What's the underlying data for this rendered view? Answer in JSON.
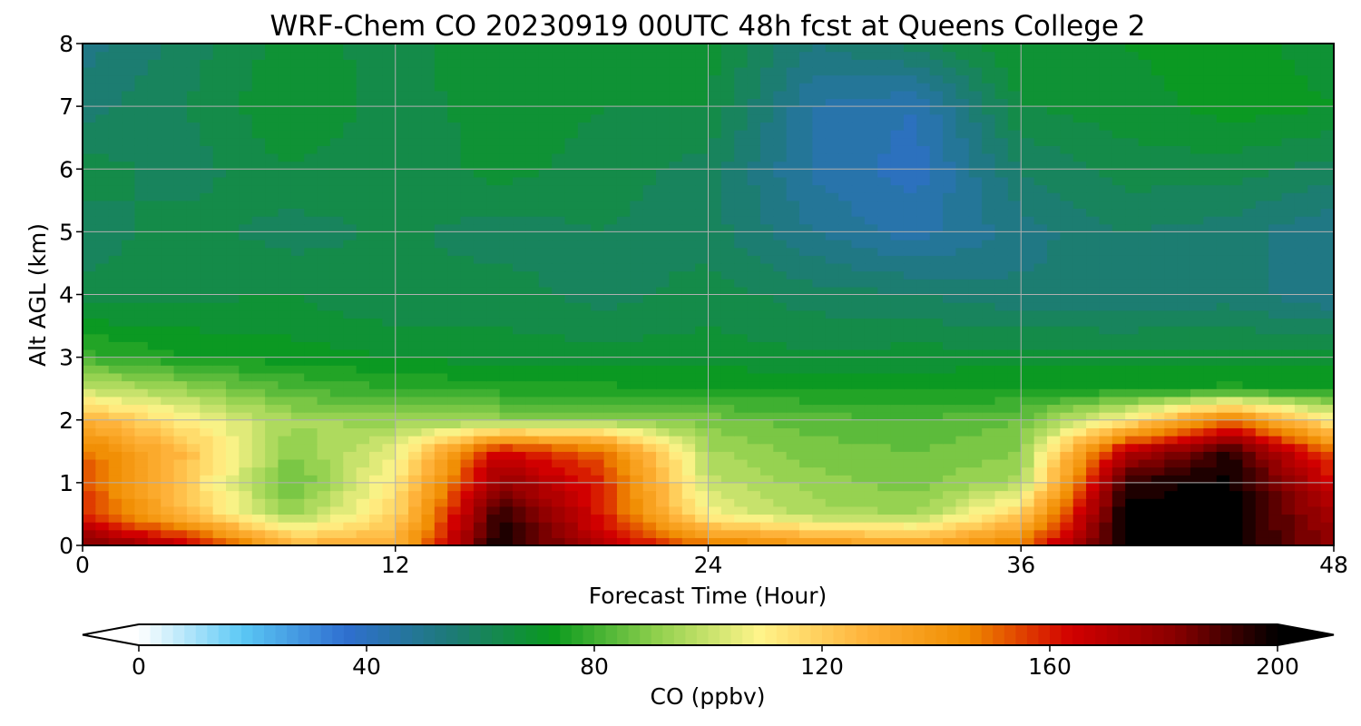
{
  "chart_data": {
    "type": "heatmap",
    "title": "WRF-Chem CO  20230919 00UTC 48h fcst at Queens College 2",
    "xlabel": "Forecast Time (Hour)",
    "ylabel": "Alt AGL (km)",
    "xlim": [
      0,
      48
    ],
    "ylim": [
      0,
      8
    ],
    "xticks": [
      0,
      12,
      24,
      36,
      48
    ],
    "yticks": [
      0,
      1,
      2,
      3,
      4,
      5,
      6,
      7,
      8
    ],
    "grid": true,
    "colorbar": {
      "label": "CO  (ppbv)",
      "min": 0,
      "max": 200,
      "ticks": [
        0,
        40,
        80,
        120,
        160,
        200
      ],
      "extend": "both",
      "colors": [
        "#ffffff",
        "#5bc8f5",
        "#2f6fd0",
        "#1e7a78",
        "#0a9a1e",
        "#8fd04d",
        "#fff48a",
        "#ffb43c",
        "#f08c00",
        "#d20000",
        "#8a0000",
        "#000000"
      ]
    },
    "x": [
      0,
      4,
      8,
      12,
      16,
      20,
      24,
      28,
      32,
      36,
      40,
      44,
      48
    ],
    "y": [
      0,
      0.5,
      1,
      1.5,
      2,
      2.5,
      3,
      4,
      5,
      6,
      7,
      8
    ],
    "z": [
      [
        185,
        170,
        130,
        130,
        200,
        170,
        150,
        142,
        135,
        150,
        200,
        200,
        180
      ],
      [
        160,
        125,
        92,
        118,
        195,
        160,
        108,
        96,
        94,
        120,
        200,
        200,
        175
      ],
      [
        155,
        120,
        84,
        112,
        180,
        158,
        100,
        92,
        88,
        96,
        195,
        200,
        165
      ],
      [
        150,
        125,
        90,
        105,
        165,
        150,
        95,
        88,
        86,
        90,
        170,
        195,
        150
      ],
      [
        130,
        110,
        95,
        92,
        92,
        92,
        88,
        84,
        82,
        86,
        112,
        150,
        110
      ],
      [
        100,
        92,
        82,
        78,
        76,
        75,
        74,
        74,
        73,
        74,
        74,
        75,
        74
      ],
      [
        80,
        74,
        72,
        70,
        68,
        68,
        68,
        67,
        68,
        68,
        68,
        68,
        68
      ],
      [
        63,
        65,
        66,
        62,
        64,
        60,
        64,
        60,
        58,
        55,
        54,
        56,
        50
      ],
      [
        60,
        64,
        60,
        63,
        60,
        62,
        60,
        50,
        44,
        52,
        58,
        56,
        50
      ],
      [
        64,
        60,
        66,
        62,
        68,
        64,
        60,
        45,
        40,
        58,
        64,
        64,
        60
      ],
      [
        56,
        62,
        70,
        64,
        68,
        66,
        66,
        46,
        42,
        66,
        68,
        72,
        70
      ],
      [
        52,
        60,
        68,
        64,
        70,
        66,
        68,
        54,
        60,
        70,
        70,
        72,
        68
      ]
    ]
  }
}
